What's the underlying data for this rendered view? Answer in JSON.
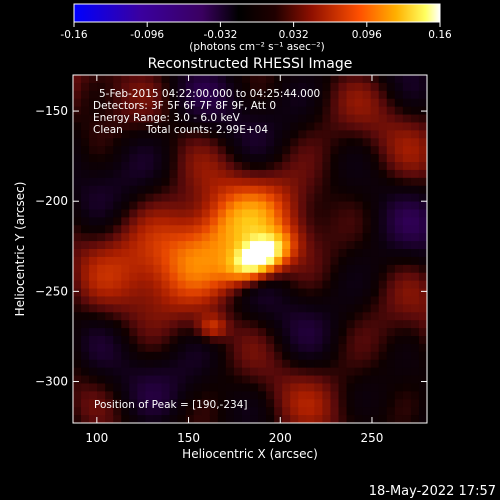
{
  "chart_data": {
    "type": "heatmap",
    "title": "Reconstructed RHESSI Image",
    "xlabel": "Heliocentric X (arcsec)",
    "ylabel": "Heliocentric Y (arcsec)",
    "xlim": [
      87,
      280
    ],
    "ylim": [
      -323,
      -130
    ],
    "x_ticks": [
      100,
      150,
      200,
      250
    ],
    "y_ticks": [
      -150,
      -200,
      -250,
      -300
    ],
    "colorbar": {
      "range": [
        -0.16,
        0.16
      ],
      "tick_values": [
        -0.16,
        -0.096,
        -0.032,
        0.032,
        0.096,
        0.16
      ],
      "tick_labels": [
        "-0.16",
        "-0.096",
        "-0.032",
        "0.032",
        "0.096",
        "0.16"
      ],
      "units_label": "(photons cm⁻² s⁻¹ asec⁻²)",
      "colors": [
        "#0000ff",
        "#4a0090",
        "#2a0050",
        "#000000",
        "#6a1010",
        "#c02000",
        "#ff6a00",
        "#ffb000",
        "#ffff80",
        "#ffffff"
      ]
    },
    "annotations": {
      "time_range": "5-Feb-2015 04:22:00.000 to 04:25:44.000",
      "detectors": "Detectors: 3F 5F 6F 7F 8F 9F, Att 0",
      "energy_range": "Energy Range: 3.0 - 6.0 keV",
      "clean_label": "Clean",
      "total_counts": "Total counts: 2.99E+04",
      "peak_position": "Position of Peak = [190,-234]"
    },
    "peak": {
      "x": 190,
      "y": -234,
      "value": 0.16
    },
    "sources": [
      {
        "x": 188,
        "y": -232,
        "amplitude": 0.16,
        "sigma_major": 12,
        "sigma_minor": 7,
        "angle_deg": 30
      },
      {
        "x": 170,
        "y": -220,
        "amplitude": 0.07,
        "sigma_major": 28,
        "sigma_minor": 16,
        "angle_deg": 25
      },
      {
        "x": 163,
        "y": -270,
        "amplitude": 0.055,
        "sigma_major": 6,
        "sigma_minor": 5,
        "angle_deg": 0
      },
      {
        "x": 150,
        "y": -228,
        "amplitude": 0.035,
        "sigma_major": 35,
        "sigma_minor": 25,
        "angle_deg": 10
      }
    ],
    "timestamp": "18-May-2022 17:57"
  }
}
